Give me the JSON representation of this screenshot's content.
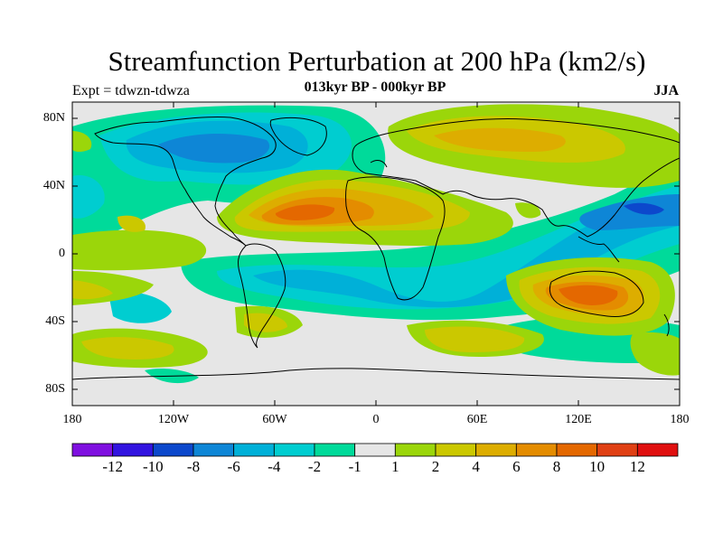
{
  "title": "Streamfunction Perturbation at 200 hPa (km2/s)",
  "subtitle": "013kyr BP - 000kyr BP",
  "left_label": "Expt = tdwzn-tdwza",
  "right_label": "JJA",
  "y_ticks": [
    "80N",
    "40N",
    "0",
    "40S",
    "80S"
  ],
  "x_ticks": [
    "180",
    "120W",
    "60W",
    "0",
    "60E",
    "120E",
    "180"
  ],
  "colorbar": {
    "colors": [
      "#7f10e0",
      "#3214e0",
      "#0c48cc",
      "#0e86d6",
      "#00b0d8",
      "#00cdd0",
      "#00da9a",
      "#e6e6e6",
      "#9bd60a",
      "#cbc800",
      "#ddad00",
      "#e48c00",
      "#e46800",
      "#e04014",
      "#e01010"
    ],
    "labels": [
      "-12",
      "-10",
      "-8",
      "-6",
      "-4",
      "-2",
      "-1",
      "1",
      "2",
      "4",
      "6",
      "8",
      "10",
      "12"
    ]
  },
  "map_colors": {
    "neutral": "#e6e6e6",
    "ocean_outline": "#000000"
  }
}
